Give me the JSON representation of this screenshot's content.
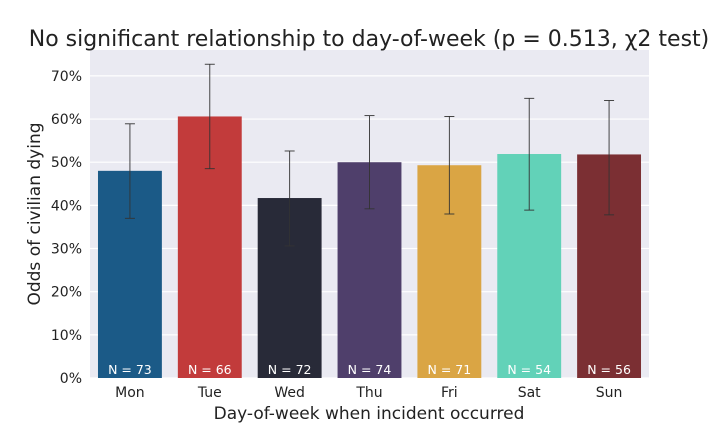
{
  "chart_data": {
    "type": "bar",
    "title": "No significant relationship to day-of-week (p = 0.513, χ2 test)",
    "xlabel": "Day-of-week when incident occurred",
    "ylabel": "Odds of civilian dying",
    "categories": [
      "Mon",
      "Tue",
      "Wed",
      "Thu",
      "Fri",
      "Sat",
      "Sun"
    ],
    "values": [
      48.0,
      60.6,
      41.7,
      50.0,
      49.3,
      51.9,
      51.8
    ],
    "error_low": [
      37.0,
      48.5,
      30.6,
      39.2,
      38.0,
      38.9,
      37.8
    ],
    "error_high": [
      58.9,
      72.7,
      52.6,
      60.8,
      60.6,
      64.8,
      64.3
    ],
    "bar_labels": [
      "N = 73",
      "N = 66",
      "N = 72",
      "N = 74",
      "N = 71",
      "N = 54",
      "N = 56"
    ],
    "colors": [
      "#1b5a87",
      "#c23b3b",
      "#282a38",
      "#4f3f6b",
      "#daa544",
      "#62d2b8",
      "#7b2f33"
    ],
    "ylim": [
      0,
      76
    ],
    "yticks": [
      0,
      10,
      20,
      30,
      40,
      50,
      60,
      70
    ],
    "ytick_labels": [
      "0%",
      "10%",
      "20%",
      "30%",
      "40%",
      "50%",
      "60%",
      "70%"
    ],
    "grid": true,
    "background": "#eaeaf2"
  }
}
